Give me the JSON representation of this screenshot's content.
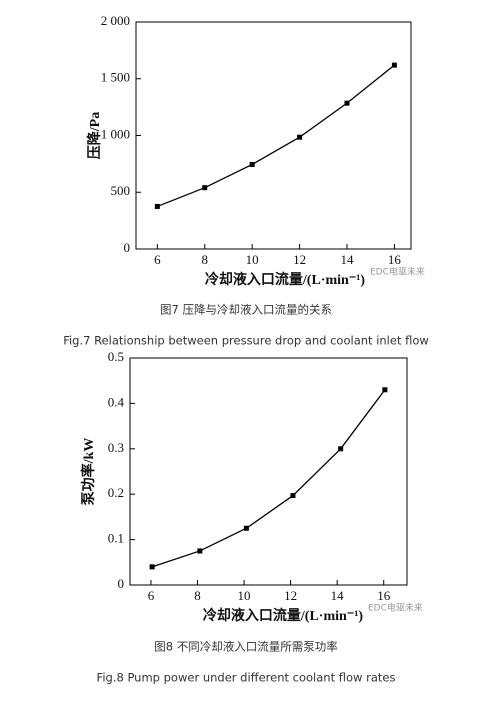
{
  "chart_data": [
    {
      "type": "line",
      "x_label": "冷却液入口流量/(L·min⁻¹)",
      "y_label": "压降/Pa",
      "caption": "图7 压降与冷却液入口流量的关系",
      "caption_en": "Fig.7 Relationship between pressure drop and coolant inlet flow",
      "watermark": "EDC电驱未来",
      "x": [
        6,
        8,
        10,
        12,
        14,
        16
      ],
      "series": [
        {
          "color": "#000000",
          "values": [
            375,
            540,
            745,
            985,
            1285,
            1620
          ]
        }
      ],
      "xlim": [
        5.1,
        16.7
      ],
      "ylim": [
        0,
        2000
      ],
      "xticks": [
        6,
        8,
        10,
        12,
        14,
        16
      ],
      "yticks": [
        0,
        500,
        {
          "value": 1000,
          "label": "1 000"
        },
        {
          "value": 1500,
          "label": "1 500"
        },
        {
          "value": 2000,
          "label": "2 000"
        }
      ],
      "grid": false
    },
    {
      "type": "line",
      "x_label": "冷却液入口流量/(L·min⁻¹)",
      "y_label": "泵功率/kW",
      "caption": "图8 不同冷却液入口流量所需泵功率",
      "caption_en": "Fig.8 Pump power under different coolant flow rates",
      "watermark": "EDC电驱未来",
      "x": [
        6.05,
        8.1,
        10.1,
        12.1,
        14.15,
        16.05
      ],
      "series": [
        {
          "color": "#000000",
          "values": [
            0.04,
            0.075,
            0.125,
            0.197,
            0.3,
            0.43
          ]
        }
      ],
      "xlim": [
        5.1,
        17
      ],
      "ylim": [
        0,
        0.5
      ],
      "xticks": [
        6,
        8,
        10,
        12,
        14,
        16
      ],
      "yticks": [
        0,
        0.1,
        0.2,
        0.3,
        0.4,
        0.5
      ],
      "grid": false
    }
  ]
}
